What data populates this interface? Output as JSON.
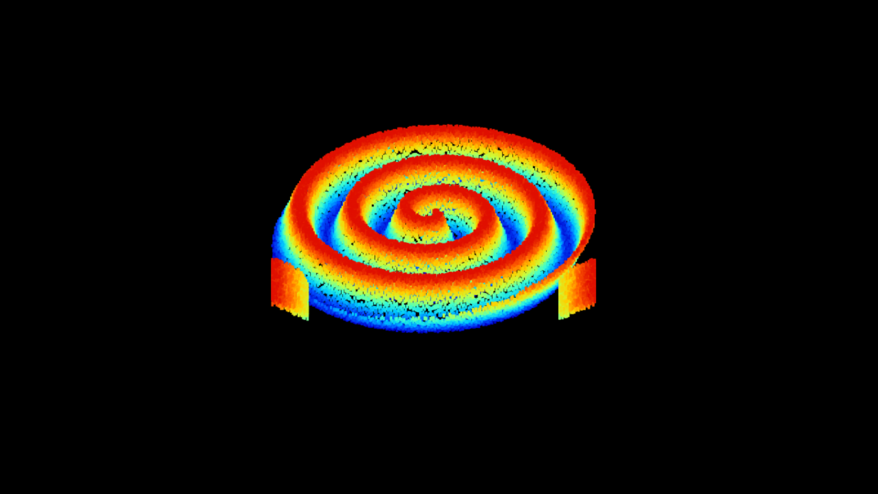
{
  "scene": {
    "background_color": "#000000",
    "colormap": "jet",
    "colormap_stops": [
      "#0000c8",
      "#0050ff",
      "#00c8ff",
      "#40ffd0",
      "#c8ff40",
      "#ffd000",
      "#ff6000",
      "#e01000"
    ],
    "surface_shape": "spiral wave",
    "spiral_turns": 3
  }
}
